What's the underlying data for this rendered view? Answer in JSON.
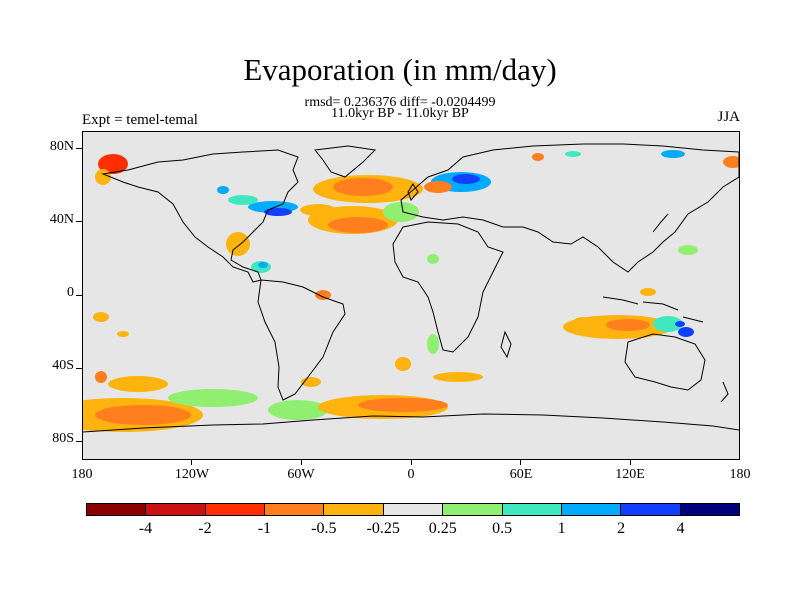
{
  "header": {
    "title": "Evaporation (in mm/day)",
    "stats": "rmsd= 0.236376 diff= -0.0204499",
    "subtitle": "11.0kyr BP - 11.0kyr BP",
    "left_label": "Expt = temel-temal",
    "right_label": "JJA"
  },
  "axes": {
    "y_labels": [
      "80N",
      "40N",
      "0",
      "40S",
      "80S"
    ],
    "x_labels": [
      "180",
      "120W",
      "60W",
      "0",
      "60E",
      "120E",
      "180"
    ]
  },
  "colorbar": {
    "labels": [
      "-4",
      "-2",
      "-1",
      "-0.5",
      "-0.25",
      "0.25",
      "0.5",
      "1",
      "2",
      "4"
    ],
    "colors": [
      "#8b0000",
      "#cc1111",
      "#ff2e00",
      "#ff7f1f",
      "#ffb30f",
      "#e6e6e6",
      "#90ee70",
      "#40e8c0",
      "#00aaff",
      "#1040ff",
      "#00007f"
    ]
  },
  "map": {
    "background_color": "#e6e6e6",
    "projection": "cylindrical equidistant, 180W-180E, 90S-90N",
    "season": "JJA"
  }
}
